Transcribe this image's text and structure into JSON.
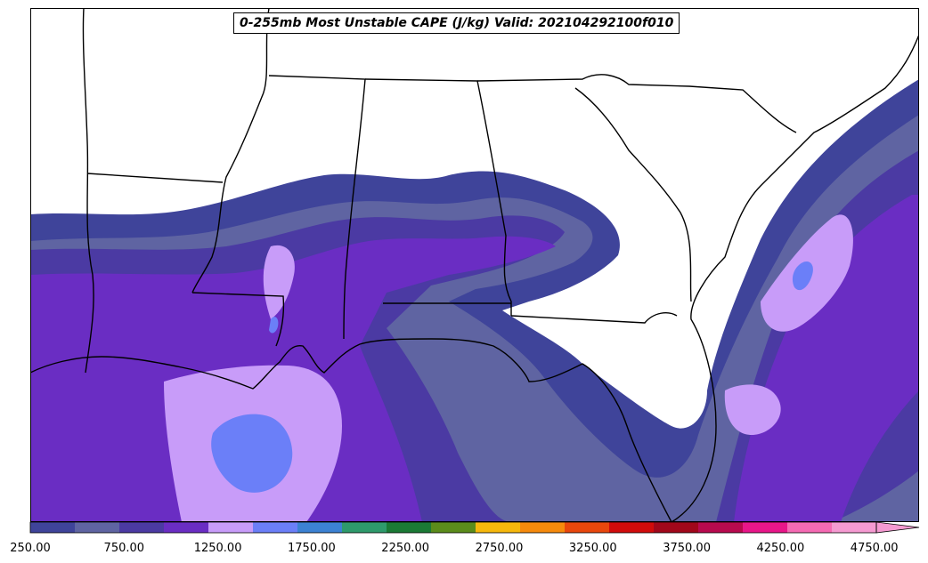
{
  "title": "0-255mb Most Unstable CAPE (J/kg) Valid: 202104292100f010",
  "colorbar": {
    "min": 250,
    "step": 250,
    "extend": "max",
    "tick_labels": [
      "250.00",
      "750.00",
      "1250.00",
      "1750.00",
      "2250.00",
      "2750.00",
      "3250.00",
      "3750.00",
      "4250.00",
      "4750.00"
    ],
    "colors": [
      "#3f449a",
      "#5f64a2",
      "#4b3aa3",
      "#6a2dc3",
      "#c89cf9",
      "#6b7ff8",
      "#3c82d3",
      "#2e9a6c",
      "#1b7a35",
      "#5b8c1b",
      "#f6b80d",
      "#f68a0d",
      "#e9470d",
      "#d10b0b",
      "#a1071a",
      "#b80a4e",
      "#e81689",
      "#f56ab3",
      "#f59ad1"
    ]
  }
}
